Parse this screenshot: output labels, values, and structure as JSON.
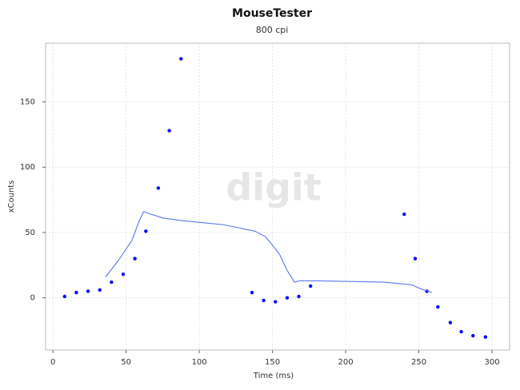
{
  "chart_data": {
    "type": "scatter",
    "title": "MouseTester",
    "subtitle": "800 cpi",
    "x_label": "Time (ms)",
    "y_label": "xCounts",
    "watermark": "digit",
    "xlim": [
      -5,
      312
    ],
    "ylim": [
      -40,
      195
    ],
    "xticks": [
      0,
      50,
      100,
      150,
      200,
      250,
      300
    ],
    "yticks": [
      0,
      50,
      100,
      150
    ],
    "grid": true,
    "series": [
      {
        "type": "scatter",
        "color": "#0000ff",
        "x": [
          8,
          16,
          24,
          32,
          40,
          48,
          56,
          63.5,
          72,
          79.5,
          87.5,
          136,
          144,
          152,
          160,
          168,
          176,
          240,
          247.5,
          255.5,
          263,
          271.5,
          279,
          287,
          295.5
        ],
        "values": [
          1,
          4,
          5,
          6,
          12,
          18,
          30,
          51,
          84,
          128,
          183,
          4,
          -2,
          -3,
          0,
          1,
          9,
          64,
          30,
          5,
          -7,
          -19,
          -26,
          -29,
          -30
        ]
      },
      {
        "type": "line",
        "color": "#5b78ee",
        "x": [
          36,
          45,
          54,
          59,
          62,
          67,
          75.5,
          89,
          116.5,
          138,
          145,
          149.5,
          155,
          160,
          165,
          168.5,
          182,
          226,
          245,
          251,
          259
        ],
        "values": [
          16,
          29,
          44,
          59,
          66,
          64,
          61,
          59,
          56,
          51,
          47,
          41,
          33,
          21,
          12,
          13,
          13,
          12,
          10,
          7,
          4
        ]
      }
    ]
  }
}
